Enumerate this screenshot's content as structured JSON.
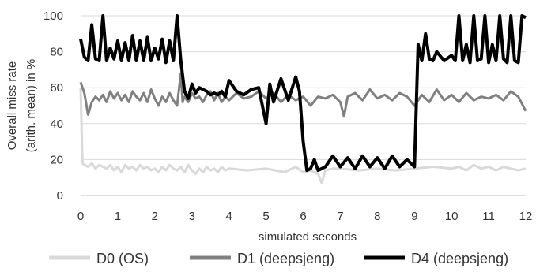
{
  "chart_data": {
    "type": "line",
    "title": "",
    "xlabel": "simulated seconds",
    "ylabel_line1": "Overall miss rate",
    "ylabel_line2": "(arith. mean) in %",
    "xlim": [
      0,
      12
    ],
    "ylim": [
      0,
      100
    ],
    "xticks": [
      "0",
      "1",
      "2",
      "3",
      "4",
      "5",
      "6",
      "7",
      "8",
      "9",
      "10",
      "11",
      "12"
    ],
    "yticks": [
      "0",
      "20",
      "40",
      "60",
      "80",
      "100"
    ],
    "grid": true,
    "legend_position": "bottom",
    "series": [
      {
        "name": "D0 (OS)",
        "color": "#d9d9d9",
        "x": [
          0,
          0.05,
          0.1,
          0.2,
          0.3,
          0.4,
          0.5,
          0.6,
          0.7,
          0.8,
          0.9,
          1.0,
          1.1,
          1.2,
          1.3,
          1.4,
          1.5,
          1.6,
          1.7,
          1.8,
          1.9,
          2.0,
          2.1,
          2.2,
          2.3,
          2.4,
          2.5,
          2.6,
          2.7,
          2.8,
          2.9,
          3.0,
          3.1,
          3.2,
          3.3,
          3.4,
          3.5,
          3.6,
          3.7,
          3.8,
          3.9,
          4.0,
          4.5,
          5.0,
          5.5,
          5.8,
          6.0,
          6.2,
          6.4,
          6.5,
          6.6,
          6.8,
          7.0,
          7.5,
          8.0,
          8.5,
          9.0,
          9.5,
          10.0,
          10.2,
          10.4,
          10.6,
          10.8,
          11.0,
          11.2,
          11.4,
          11.6,
          11.8,
          12.0
        ],
        "values": [
          60,
          18,
          17,
          16,
          18,
          15,
          17,
          16,
          15,
          17,
          14,
          16,
          13,
          17,
          15,
          16,
          14,
          17,
          15,
          16,
          14,
          15,
          13,
          16,
          14,
          17,
          15,
          14,
          16,
          13,
          17,
          14,
          12,
          15,
          13,
          16,
          14,
          15,
          13,
          16,
          14,
          15,
          14,
          15,
          13,
          16,
          13,
          14,
          12,
          7,
          14,
          15,
          15,
          14,
          15,
          14,
          15,
          16,
          15,
          16,
          14,
          17,
          15,
          16,
          14,
          16,
          15,
          14,
          15
        ]
      },
      {
        "name": "D1 (deepsjeng)",
        "color": "#808080",
        "x": [
          0,
          0.1,
          0.2,
          0.3,
          0.4,
          0.5,
          0.6,
          0.7,
          0.8,
          0.9,
          1.0,
          1.1,
          1.2,
          1.3,
          1.4,
          1.5,
          1.6,
          1.7,
          1.8,
          1.9,
          2.0,
          2.1,
          2.2,
          2.3,
          2.4,
          2.5,
          2.6,
          2.7,
          2.75,
          2.8,
          2.9,
          3.0,
          3.1,
          3.2,
          3.3,
          3.4,
          3.5,
          3.6,
          3.7,
          3.8,
          3.9,
          4.0,
          4.2,
          4.4,
          4.6,
          4.8,
          5.0,
          5.2,
          5.4,
          5.6,
          5.8,
          6.0,
          6.2,
          6.4,
          6.6,
          6.8,
          7.0,
          7.1,
          7.2,
          7.4,
          7.6,
          7.8,
          8.0,
          8.2,
          8.4,
          8.6,
          8.8,
          9.0,
          9.2,
          9.4,
          9.6,
          9.8,
          10.0,
          10.2,
          10.4,
          10.6,
          10.8,
          11.0,
          11.2,
          11.4,
          11.6,
          11.8,
          12.0
        ],
        "values": [
          63,
          57,
          45,
          52,
          55,
          53,
          56,
          52,
          58,
          54,
          57,
          53,
          56,
          52,
          58,
          55,
          53,
          57,
          52,
          59,
          54,
          50,
          55,
          52,
          57,
          53,
          50,
          68,
          52,
          55,
          52,
          57,
          54,
          55,
          52,
          56,
          58,
          53,
          57,
          52,
          55,
          53,
          57,
          54,
          55,
          58,
          54,
          57,
          52,
          56,
          53,
          55,
          50,
          55,
          54,
          56,
          52,
          44,
          55,
          57,
          53,
          59,
          54,
          56,
          53,
          57,
          55,
          50,
          56,
          52,
          59,
          53,
          56,
          52,
          57,
          53,
          55,
          54,
          56,
          53,
          58,
          55,
          47
        ]
      },
      {
        "name": "D4 (deepsjeng)",
        "color": "#000000",
        "x": [
          0,
          0.1,
          0.2,
          0.3,
          0.4,
          0.5,
          0.6,
          0.7,
          0.8,
          0.9,
          1.0,
          1.1,
          1.2,
          1.3,
          1.4,
          1.5,
          1.6,
          1.7,
          1.8,
          1.9,
          2.0,
          2.1,
          2.2,
          2.3,
          2.4,
          2.5,
          2.6,
          2.7,
          2.8,
          2.9,
          3.0,
          3.1,
          3.2,
          3.3,
          3.4,
          3.5,
          3.6,
          3.7,
          3.8,
          3.9,
          4.0,
          4.2,
          4.4,
          4.6,
          4.8,
          5.0,
          5.1,
          5.2,
          5.4,
          5.6,
          5.8,
          5.9,
          6.0,
          6.1,
          6.2,
          6.3,
          6.4,
          6.5,
          6.6,
          6.8,
          7.0,
          7.2,
          7.4,
          7.6,
          7.8,
          8.0,
          8.2,
          8.4,
          8.6,
          8.8,
          9.0,
          9.1,
          9.2,
          9.3,
          9.4,
          9.5,
          9.6,
          9.8,
          10.0,
          10.1,
          10.2,
          10.3,
          10.4,
          10.5,
          10.6,
          10.7,
          10.8,
          10.9,
          11.0,
          11.1,
          11.2,
          11.3,
          11.4,
          11.5,
          11.6,
          11.7,
          11.8,
          11.9,
          12.0
        ],
        "values": [
          87,
          77,
          75,
          95,
          76,
          75,
          100,
          75,
          82,
          76,
          86,
          75,
          85,
          75,
          89,
          75,
          86,
          75,
          88,
          75,
          82,
          76,
          87,
          74,
          86,
          75,
          100,
          75,
          58,
          54,
          62,
          57,
          60,
          59,
          58,
          56,
          57,
          56,
          58,
          55,
          64,
          58,
          56,
          59,
          60,
          40,
          62,
          52,
          65,
          53,
          66,
          58,
          30,
          14,
          15,
          20,
          14,
          15,
          16,
          22,
          16,
          21,
          15,
          22,
          16,
          21,
          15,
          22,
          16,
          20,
          16,
          84,
          75,
          90,
          76,
          75,
          80,
          75,
          78,
          75,
          100,
          75,
          84,
          74,
          100,
          75,
          76,
          100,
          74,
          84,
          75,
          100,
          76,
          74,
          100,
          75,
          74,
          100,
          99
        ]
      }
    ]
  }
}
